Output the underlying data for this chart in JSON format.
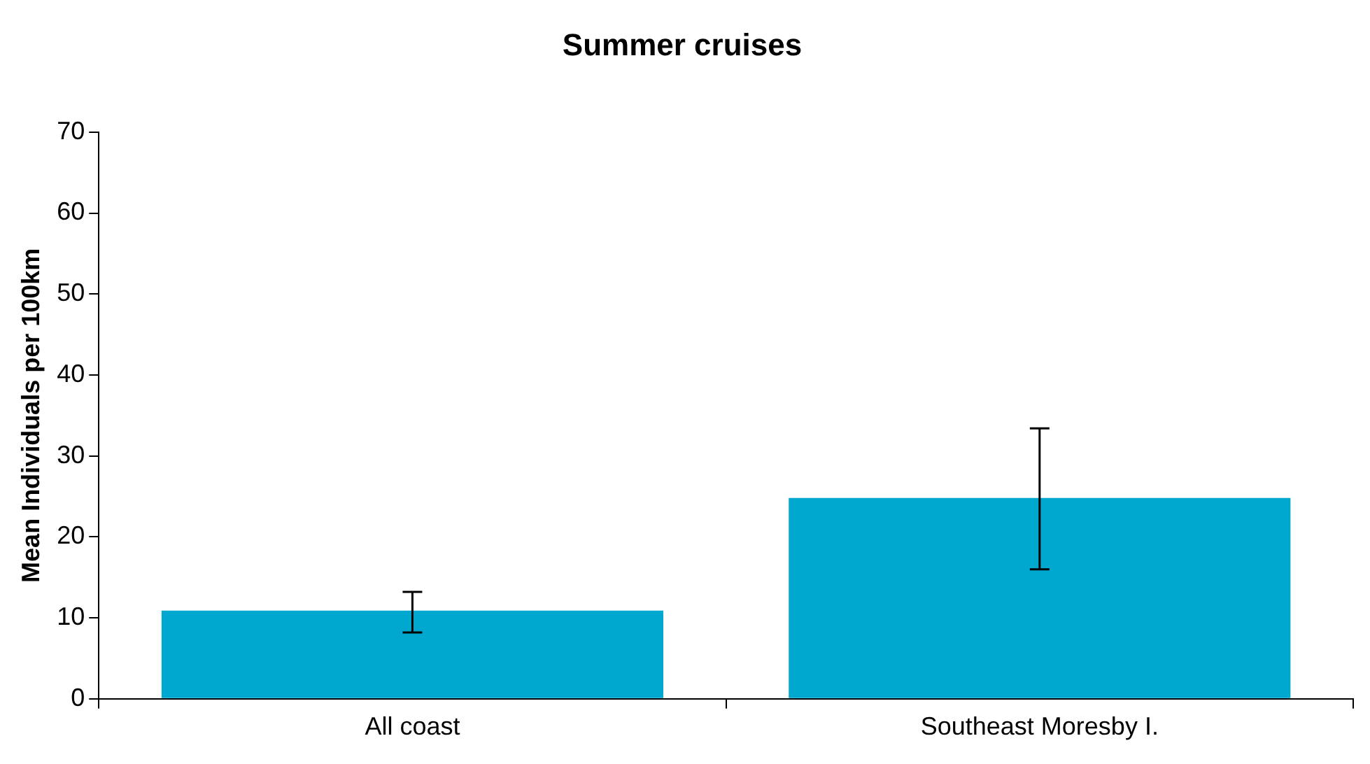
{
  "chart_data": {
    "type": "bar",
    "title": "Summer cruises",
    "ylabel": "Mean Individuals per 100km",
    "categories": [
      "All coast",
      "Southeast Moresby I."
    ],
    "series": [
      {
        "color": "#00a8d0",
        "values": [
          10.9,
          24.8
        ],
        "errors": [
          [
            8.2,
            13.2
          ],
          [
            16.0,
            33.4
          ]
        ]
      }
    ],
    "ylim": [
      0,
      70
    ],
    "yticks": [
      0,
      10,
      20,
      30,
      40,
      50,
      60,
      70
    ],
    "grid": false,
    "legend": false
  }
}
